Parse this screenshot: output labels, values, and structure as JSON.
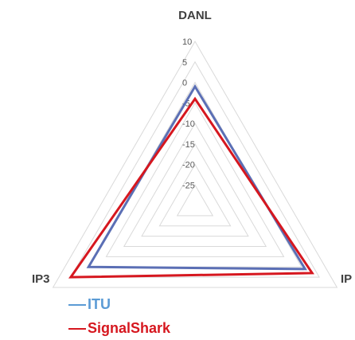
{
  "chart_data": {
    "type": "radar",
    "axes": [
      "DANL",
      "IP",
      "IP3"
    ],
    "ticks": [
      10,
      5,
      0,
      -5,
      -10,
      -15,
      -20,
      -25
    ],
    "rlim": [
      -30,
      10
    ],
    "series": [
      {
        "name": "ITU",
        "color": "#5b6fb5",
        "values": [
          -1,
          1,
          0
        ]
      },
      {
        "name": "SignalShark",
        "color": "#d6171f",
        "values": [
          -4,
          3,
          5
        ]
      }
    ],
    "legend_position": "bottom-left"
  }
}
